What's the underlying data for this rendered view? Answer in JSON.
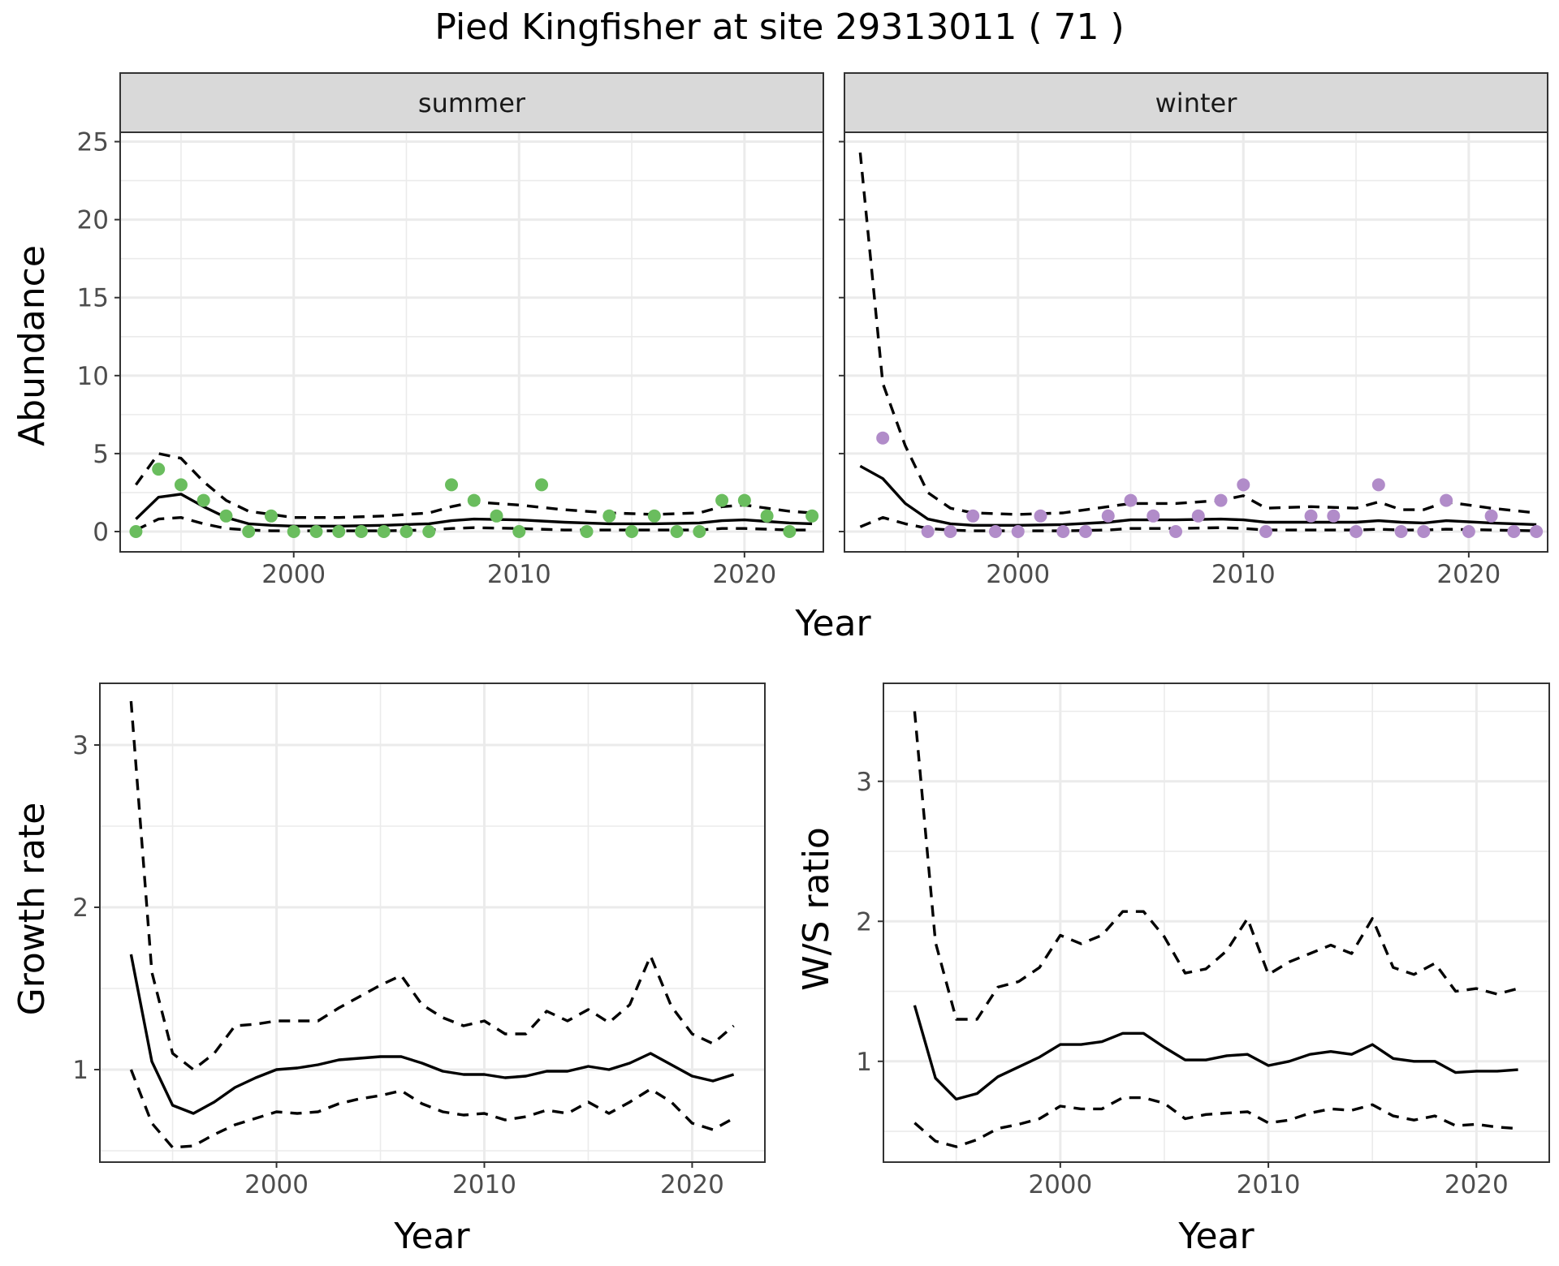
{
  "title": "Pied Kingfisher at site 29313011 ( 71 )",
  "colors": {
    "summer_points": "#6abd5e",
    "winter_points": "#b18cc9",
    "lines": "#000000"
  },
  "chart_data": [
    {
      "id": "abundance",
      "type": "line",
      "facets": [
        "summer",
        "winter"
      ],
      "xlabel": "Year",
      "ylabel": "Abundance",
      "xlim": [
        1992.3,
        2023.5
      ],
      "ylim": [
        -1.3,
        25.6
      ],
      "xticks": [
        2000,
        2010,
        2020
      ],
      "yticks": [
        0,
        5,
        10,
        15,
        20,
        25
      ],
      "grid": true,
      "panels": [
        {
          "facet": "summer",
          "points": {
            "x": [
              1993,
              1994,
              1995,
              1996,
              1997,
              1998,
              1999,
              2000,
              2001,
              2002,
              2003,
              2004,
              2005,
              2006,
              2007,
              2008,
              2009,
              2010,
              2011,
              2013,
              2014,
              2015,
              2016,
              2017,
              2018,
              2019,
              2020,
              2021,
              2022,
              2023
            ],
            "y": [
              0,
              4,
              3,
              2,
              1,
              0,
              1,
              0,
              0,
              0,
              0,
              0,
              0,
              0,
              3,
              2,
              1,
              0,
              3,
              0,
              1,
              0,
              1,
              0,
              0,
              2,
              2,
              1,
              0,
              1
            ]
          },
          "series": [
            {
              "style": "solid",
              "x": [
                1993,
                1994,
                1995,
                1996,
                1997,
                1998,
                1999,
                2000,
                2002,
                2004,
                2006,
                2007,
                2008,
                2010,
                2012,
                2014,
                2016,
                2018,
                2019,
                2020,
                2021,
                2022,
                2023
              ],
              "y": [
                0.8,
                2.2,
                2.4,
                1.6,
                0.9,
                0.5,
                0.4,
                0.35,
                0.35,
                0.4,
                0.5,
                0.7,
                0.8,
                0.75,
                0.6,
                0.5,
                0.5,
                0.55,
                0.7,
                0.75,
                0.65,
                0.55,
                0.5
              ]
            },
            {
              "style": "dashed",
              "x": [
                1993,
                1994,
                1995,
                1996,
                1997,
                1998,
                1999,
                2000,
                2002,
                2004,
                2006,
                2007,
                2008,
                2010,
                2012,
                2014,
                2016,
                2018,
                2019,
                2020,
                2021,
                2022,
                2023
              ],
              "y": [
                3.0,
                5.0,
                4.7,
                3.2,
                2.0,
                1.3,
                1.1,
                0.9,
                0.9,
                1.0,
                1.2,
                1.6,
                1.9,
                1.7,
                1.4,
                1.2,
                1.1,
                1.2,
                1.6,
                1.7,
                1.5,
                1.3,
                1.2
              ]
            },
            {
              "style": "dashed",
              "x": [
                1993,
                1994,
                1995,
                1996,
                1997,
                1998,
                1999,
                2000,
                2002,
                2004,
                2006,
                2007,
                2008,
                2010,
                2012,
                2014,
                2016,
                2018,
                2019,
                2020,
                2021,
                2022,
                2023
              ],
              "y": [
                0.1,
                0.8,
                0.9,
                0.5,
                0.2,
                0.1,
                0.05,
                0.05,
                0.05,
                0.05,
                0.1,
                0.2,
                0.25,
                0.2,
                0.1,
                0.1,
                0.1,
                0.1,
                0.2,
                0.2,
                0.15,
                0.1,
                0.1
              ]
            }
          ]
        },
        {
          "facet": "winter",
          "points": {
            "x": [
              1994,
              1996,
              1997,
              1998,
              1999,
              2000,
              2001,
              2002,
              2003,
              2004,
              2005,
              2006,
              2007,
              2008,
              2009,
              2010,
              2011,
              2013,
              2014,
              2015,
              2016,
              2017,
              2018,
              2019,
              2020,
              2021,
              2022,
              2023
            ],
            "y": [
              6,
              0,
              0,
              1,
              0,
              0,
              1,
              0,
              0,
              1,
              2,
              1,
              0,
              1,
              2,
              3,
              0,
              1,
              1,
              0,
              3,
              0,
              0,
              2,
              0,
              1,
              0,
              0
            ]
          },
          "series": [
            {
              "style": "solid",
              "x": [
                1993,
                1994,
                1995,
                1996,
                1997,
                1998,
                2000,
                2002,
                2004,
                2005,
                2007,
                2009,
                2010,
                2011,
                2013,
                2015,
                2016,
                2017,
                2018,
                2019,
                2021,
                2023
              ],
              "y": [
                4.2,
                3.4,
                1.8,
                0.8,
                0.5,
                0.4,
                0.4,
                0.45,
                0.6,
                0.75,
                0.75,
                0.8,
                0.75,
                0.6,
                0.6,
                0.6,
                0.7,
                0.6,
                0.55,
                0.7,
                0.55,
                0.45
              ]
            },
            {
              "style": "dashed",
              "x": [
                1993,
                1994,
                1995,
                1996,
                1997,
                1998,
                2000,
                2002,
                2004,
                2005,
                2007,
                2009,
                2010,
                2011,
                2013,
                2015,
                2016,
                2017,
                2018,
                2019,
                2021,
                2023
              ],
              "y": [
                24.3,
                9.5,
                5.5,
                2.5,
                1.5,
                1.2,
                1.1,
                1.2,
                1.6,
                1.8,
                1.8,
                2.0,
                2.3,
                1.5,
                1.6,
                1.5,
                1.9,
                1.4,
                1.4,
                1.9,
                1.5,
                1.2
              ]
            },
            {
              "style": "dashed",
              "x": [
                1993,
                1994,
                1995,
                1996,
                1997,
                1998,
                2000,
                2002,
                2004,
                2005,
                2007,
                2009,
                2010,
                2011,
                2013,
                2015,
                2016,
                2017,
                2018,
                2019,
                2021,
                2023
              ],
              "y": [
                0.3,
                0.9,
                0.5,
                0.2,
                0.1,
                0.05,
                0.05,
                0.05,
                0.1,
                0.2,
                0.2,
                0.25,
                0.2,
                0.1,
                0.1,
                0.1,
                0.15,
                0.1,
                0.1,
                0.15,
                0.1,
                0.05
              ]
            }
          ]
        }
      ]
    },
    {
      "id": "growth-rate",
      "type": "line",
      "xlabel": "Year",
      "ylabel": "Growth rate",
      "xlim": [
        1991.5,
        2023.5
      ],
      "ylim": [
        0.43,
        3.38
      ],
      "xticks": [
        2000,
        2010,
        2020
      ],
      "yticks": [
        1,
        2,
        3
      ],
      "grid": true,
      "series": [
        {
          "style": "solid",
          "x": [
            1993,
            1994,
            1995,
            1996,
            1997,
            1998,
            1999,
            2000,
            2001,
            2002,
            2003,
            2004,
            2005,
            2006,
            2007,
            2008,
            2009,
            2010,
            2011,
            2012,
            2013,
            2014,
            2015,
            2016,
            2017,
            2018,
            2019,
            2020,
            2021,
            2022
          ],
          "y": [
            1.71,
            1.05,
            0.78,
            0.73,
            0.8,
            0.89,
            0.95,
            1.0,
            1.01,
            1.03,
            1.06,
            1.07,
            1.08,
            1.08,
            1.04,
            0.99,
            0.97,
            0.97,
            0.95,
            0.96,
            0.99,
            0.99,
            1.02,
            1.0,
            1.04,
            1.1,
            1.03,
            0.96,
            0.93,
            0.97
          ]
        },
        {
          "style": "dashed",
          "x": [
            1993,
            1994,
            1995,
            1996,
            1997,
            1998,
            1999,
            2000,
            2001,
            2002,
            2003,
            2004,
            2005,
            2006,
            2007,
            2008,
            2009,
            2010,
            2011,
            2012,
            2013,
            2014,
            2015,
            2016,
            2017,
            2018,
            2019,
            2020,
            2021,
            2022
          ],
          "y": [
            3.27,
            1.6,
            1.1,
            1.0,
            1.1,
            1.27,
            1.28,
            1.3,
            1.3,
            1.3,
            1.38,
            1.45,
            1.52,
            1.58,
            1.4,
            1.32,
            1.27,
            1.3,
            1.22,
            1.22,
            1.36,
            1.3,
            1.37,
            1.29,
            1.4,
            1.7,
            1.39,
            1.22,
            1.16,
            1.27
          ]
        },
        {
          "style": "dashed",
          "x": [
            1993,
            1994,
            1995,
            1996,
            1997,
            1998,
            1999,
            2000,
            2001,
            2002,
            2003,
            2004,
            2005,
            2006,
            2007,
            2008,
            2009,
            2010,
            2011,
            2012,
            2013,
            2014,
            2015,
            2016,
            2017,
            2018,
            2019,
            2020,
            2021,
            2022
          ],
          "y": [
            1.0,
            0.67,
            0.52,
            0.53,
            0.6,
            0.66,
            0.7,
            0.74,
            0.73,
            0.74,
            0.79,
            0.82,
            0.84,
            0.87,
            0.79,
            0.74,
            0.72,
            0.73,
            0.69,
            0.71,
            0.75,
            0.73,
            0.8,
            0.73,
            0.8,
            0.88,
            0.8,
            0.67,
            0.63,
            0.7
          ]
        }
      ]
    },
    {
      "id": "ws-ratio",
      "type": "line",
      "xlabel": "Year",
      "ylabel": "W/S ratio",
      "xlim": [
        1991.5,
        2023.5
      ],
      "ylim": [
        0.28,
        3.7
      ],
      "xticks": [
        2000,
        2010,
        2020
      ],
      "yticks": [
        1,
        2,
        3
      ],
      "grid": true,
      "series": [
        {
          "style": "solid",
          "x": [
            1993,
            1994,
            1995,
            1996,
            1997,
            1998,
            1999,
            2000,
            2001,
            2002,
            2003,
            2004,
            2005,
            2006,
            2007,
            2008,
            2009,
            2010,
            2011,
            2012,
            2013,
            2014,
            2015,
            2016,
            2017,
            2018,
            2019,
            2020,
            2021,
            2022
          ],
          "y": [
            1.4,
            0.88,
            0.73,
            0.77,
            0.89,
            0.96,
            1.03,
            1.12,
            1.12,
            1.14,
            1.2,
            1.2,
            1.1,
            1.01,
            1.01,
            1.04,
            1.05,
            0.97,
            1.0,
            1.05,
            1.07,
            1.05,
            1.12,
            1.02,
            1.0,
            1.0,
            0.92,
            0.93,
            0.93,
            0.94
          ]
        },
        {
          "style": "dashed",
          "x": [
            1993,
            1994,
            1995,
            1996,
            1997,
            1998,
            1999,
            2000,
            2001,
            2002,
            2003,
            2004,
            2005,
            2006,
            2007,
            2008,
            2009,
            2010,
            2011,
            2012,
            2013,
            2014,
            2015,
            2016,
            2017,
            2018,
            2019,
            2020,
            2021,
            2022
          ],
          "y": [
            3.5,
            1.85,
            1.3,
            1.3,
            1.53,
            1.57,
            1.67,
            1.9,
            1.84,
            1.9,
            2.07,
            2.07,
            1.89,
            1.63,
            1.66,
            1.79,
            2.02,
            1.62,
            1.71,
            1.77,
            1.83,
            1.77,
            2.02,
            1.67,
            1.62,
            1.7,
            1.5,
            1.52,
            1.48,
            1.52
          ]
        },
        {
          "style": "dashed",
          "x": [
            1993,
            1994,
            1995,
            1996,
            1997,
            1998,
            1999,
            2000,
            2001,
            2002,
            2003,
            2004,
            2005,
            2006,
            2007,
            2008,
            2009,
            2010,
            2011,
            2012,
            2013,
            2014,
            2015,
            2016,
            2017,
            2018,
            2019,
            2020,
            2021,
            2022
          ],
          "y": [
            0.56,
            0.43,
            0.39,
            0.44,
            0.52,
            0.55,
            0.59,
            0.68,
            0.66,
            0.66,
            0.74,
            0.74,
            0.7,
            0.59,
            0.62,
            0.63,
            0.64,
            0.56,
            0.58,
            0.63,
            0.66,
            0.65,
            0.69,
            0.61,
            0.58,
            0.61,
            0.54,
            0.55,
            0.53,
            0.52
          ]
        }
      ]
    }
  ]
}
